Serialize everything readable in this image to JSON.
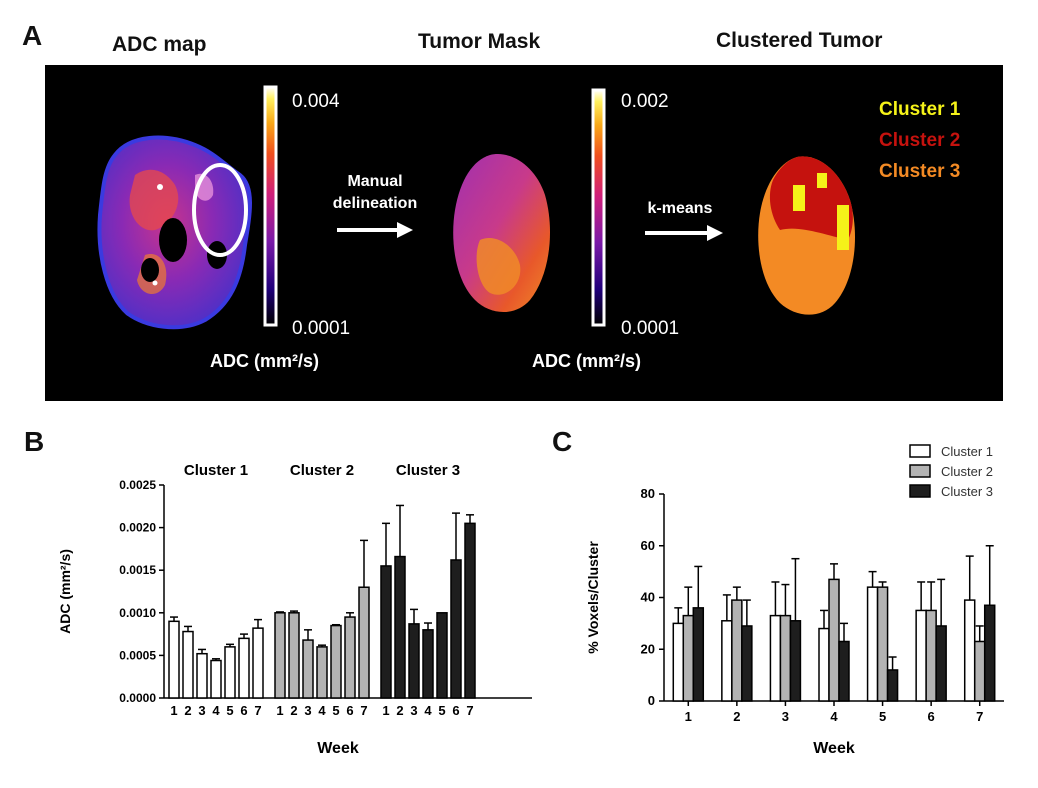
{
  "panel_a": {
    "letter": "A",
    "titles": {
      "adc_map": "ADC map",
      "tumor_mask": "Tumor Mask",
      "clustered": "Clustered Tumor"
    },
    "colorbar1": {
      "max": "0.004",
      "min": "0.0001",
      "label": "ADC (mm²/s)"
    },
    "colorbar2": {
      "max": "0.002",
      "min": "0.0001",
      "label": "ADC (mm²/s)"
    },
    "arrow1": {
      "line1": "Manual",
      "line2": "delineation"
    },
    "arrow2": {
      "label": "k-means"
    },
    "legend": [
      {
        "label": "Cluster 1",
        "color": "#f5f219"
      },
      {
        "label": "Cluster 2",
        "color": "#c5120e"
      },
      {
        "label": "Cluster 3",
        "color": "#f38a24"
      }
    ]
  },
  "panel_b_letter": "B",
  "panel_c_letter": "C",
  "chart_data": [
    {
      "type": "bar",
      "title": "",
      "xlabel": "Week",
      "ylabel": "ADC (mm²/s)",
      "ylim": [
        0,
        0.0025
      ],
      "yticks": [
        "0.0000",
        "0.0005",
        "0.0010",
        "0.0015",
        "0.0020",
        "0.0025"
      ],
      "ytick_values": [
        0,
        0.0005,
        0.001,
        0.0015,
        0.002,
        0.0025
      ],
      "categories": [
        "1",
        "2",
        "3",
        "4",
        "5",
        "6",
        "7"
      ],
      "groups": [
        {
          "name": "Cluster 1",
          "fill": "#ffffff",
          "values": [
            0.0009,
            0.00078,
            0.00052,
            0.00044,
            0.0006,
            0.0007,
            0.00082
          ],
          "errors": [
            5e-05,
            6e-05,
            5e-05,
            2e-05,
            3e-05,
            5e-05,
            0.0001
          ]
        },
        {
          "name": "Cluster 2",
          "fill": "#b3b3b3",
          "values": [
            0.001,
            0.001,
            0.00068,
            0.0006,
            0.00085,
            0.00095,
            0.0013
          ],
          "errors": [
            1e-05,
            2e-05,
            0.00012,
            2e-05,
            1e-05,
            5e-05,
            0.00055
          ]
        },
        {
          "name": "Cluster 3",
          "fill": "#1e1e1e",
          "values": [
            0.00155,
            0.00166,
            0.00087,
            0.0008,
            0.001,
            0.00162,
            0.00205
          ],
          "errors": [
            0.0005,
            0.0006,
            0.00017,
            8e-05,
            0.0,
            0.00055,
            0.0001
          ]
        }
      ]
    },
    {
      "type": "bar",
      "title": "",
      "xlabel": "Week",
      "ylabel": "% Voxels/Cluster",
      "ylim": [
        0,
        80
      ],
      "yticks": [
        "0",
        "20",
        "40",
        "60",
        "80"
      ],
      "ytick_values": [
        0,
        20,
        40,
        60,
        80
      ],
      "categories": [
        "1",
        "2",
        "3",
        "4",
        "5",
        "6",
        "7"
      ],
      "series": [
        {
          "name": "Cluster 1",
          "fill": "#ffffff",
          "values": [
            30,
            31,
            33,
            28,
            44,
            35,
            39
          ],
          "errors": [
            6,
            10,
            13,
            7,
            6,
            11,
            17
          ]
        },
        {
          "name": "Cluster 2",
          "fill": "#b3b3b3",
          "values": [
            33,
            39,
            33,
            47,
            44,
            35,
            23
          ],
          "errors": [
            11,
            5,
            12,
            6,
            2,
            11,
            6
          ]
        },
        {
          "name": "Cluster 3",
          "fill": "#1e1e1e",
          "values": [
            36,
            29,
            31,
            23,
            12,
            29,
            37
          ],
          "errors": [
            16,
            10,
            24,
            7,
            5,
            18,
            23
          ]
        }
      ]
    }
  ]
}
